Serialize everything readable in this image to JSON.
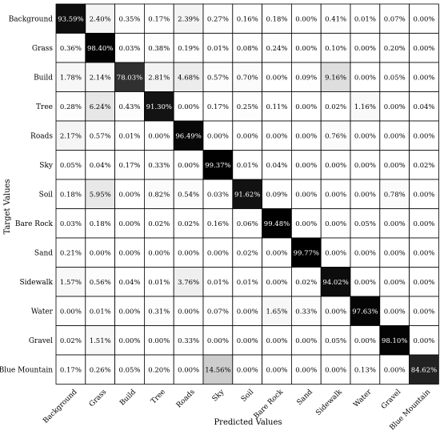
{
  "chart_data": {
    "type": "heatmap",
    "title": "",
    "xlabel": "Predicted Values",
    "ylabel": "Target Values",
    "x_categories": [
      "Background",
      "Grass",
      "Build",
      "Tree",
      "Roads",
      "Sky",
      "Soil",
      "Bare Rock",
      "Sand",
      "Sidewalk",
      "Water",
      "Gravel",
      "Blue Mountain"
    ],
    "y_categories": [
      "Background",
      "Grass",
      "Build",
      "Tree",
      "Roads",
      "Sky",
      "Soil",
      "Bare Rock",
      "Sand",
      "Sidewalk",
      "Water",
      "Gravel",
      "Blue Mountain"
    ],
    "values": [
      [
        93.59,
        2.4,
        0.35,
        0.17,
        2.39,
        0.27,
        0.16,
        0.18,
        0.0,
        0.41,
        0.01,
        0.07,
        0.0
      ],
      [
        0.36,
        98.4,
        0.03,
        0.38,
        0.19,
        0.01,
        0.08,
        0.24,
        0.0,
        0.1,
        0.0,
        0.2,
        0.0
      ],
      [
        1.78,
        2.14,
        78.03,
        2.81,
        4.68,
        0.57,
        0.7,
        0.0,
        0.09,
        9.16,
        0.0,
        0.05,
        0.0
      ],
      [
        0.28,
        6.24,
        0.43,
        91.3,
        0.0,
        0.17,
        0.25,
        0.11,
        0.0,
        0.02,
        1.16,
        0.0,
        0.04
      ],
      [
        2.17,
        0.57,
        0.01,
        0.0,
        96.49,
        0.0,
        0.0,
        0.0,
        0.0,
        0.76,
        0.0,
        0.0,
        0.0
      ],
      [
        0.05,
        0.04,
        0.17,
        0.33,
        0.0,
        99.37,
        0.01,
        0.04,
        0.0,
        0.0,
        0.0,
        0.0,
        0.02
      ],
      [
        0.18,
        5.95,
        0.0,
        0.82,
        0.54,
        0.03,
        91.62,
        0.09,
        0.0,
        0.0,
        0.0,
        0.78,
        0.0
      ],
      [
        0.03,
        0.18,
        0.0,
        0.02,
        0.02,
        0.16,
        0.06,
        99.48,
        0.0,
        0.0,
        0.05,
        0.0,
        0.0
      ],
      [
        0.21,
        0.0,
        0.0,
        0.0,
        0.0,
        0.0,
        0.02,
        0.0,
        99.77,
        0.0,
        0.0,
        0.0,
        0.0
      ],
      [
        1.57,
        0.56,
        0.04,
        0.01,
        3.76,
        0.01,
        0.01,
        0.0,
        0.02,
        94.02,
        0.0,
        0.0,
        0.0
      ],
      [
        0.0,
        0.01,
        0.0,
        0.31,
        0.0,
        0.07,
        0.0,
        1.65,
        0.33,
        0.0,
        97.63,
        0.0,
        0.0
      ],
      [
        0.02,
        1.51,
        0.0,
        0.0,
        0.33,
        0.0,
        0.0,
        0.0,
        0.0,
        0.05,
        0.0,
        98.1,
        0.0
      ],
      [
        0.17,
        0.26,
        0.05,
        0.2,
        0.0,
        14.56,
        0.0,
        0.0,
        0.0,
        0.0,
        0.13,
        0.0,
        84.62
      ]
    ],
    "value_format": "percent_2dp",
    "colormap": "white-to-black",
    "grid": true,
    "legend": "none"
  }
}
